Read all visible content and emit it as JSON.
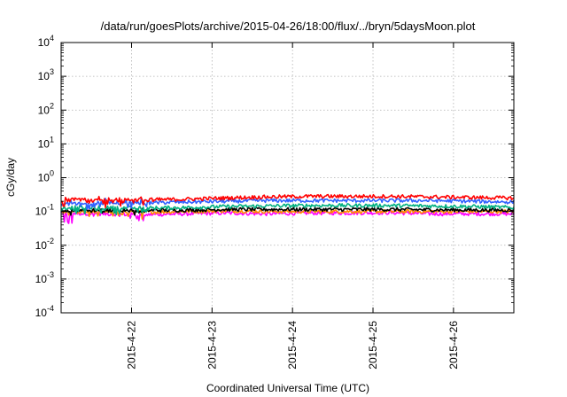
{
  "chart_data": {
    "type": "line",
    "title": "/data/run/goesPlots/archive/2015-04-26/18:00/flux/../bryn/5daysMoon.plot",
    "xlabel": "Coordinated Universal Time (UTC)",
    "ylabel": "cGy/day",
    "yscale": "log",
    "ylim": [
      0.0001,
      10000
    ],
    "xlim": [
      "2015-04-21 03:00",
      "2015-04-26 18:00"
    ],
    "grid": true,
    "x_ticks": [
      "2015-4-22",
      "2015-4-23",
      "2015-4-24",
      "2015-4-25",
      "2015-4-26"
    ],
    "y_ticks": [
      {
        "base": "10",
        "exp": "-4"
      },
      {
        "base": "10",
        "exp": "-3"
      },
      {
        "base": "10",
        "exp": "-2"
      },
      {
        "base": "10",
        "exp": "-1"
      },
      {
        "base": "10",
        "exp": "0"
      },
      {
        "base": "10",
        "exp": "1"
      },
      {
        "base": "10",
        "exp": "2"
      },
      {
        "base": "10",
        "exp": "3"
      },
      {
        "base": "10",
        "exp": "4"
      }
    ],
    "series": [
      {
        "color": "#ff00ff",
        "values": [
          0.09,
          0.085,
          0.08,
          0.085,
          0.09,
          0.085,
          0.09,
          0.09,
          0.092,
          0.085,
          0.085,
          0.085
        ]
      },
      {
        "color": "#ff8c00",
        "values": [
          0.1,
          0.097,
          0.095,
          0.1,
          0.105,
          0.1,
          0.1,
          0.1,
          0.1,
          0.1,
          0.1,
          0.1
        ]
      },
      {
        "color": "#000000",
        "values": [
          0.11,
          0.11,
          0.108,
          0.11,
          0.115,
          0.115,
          0.115,
          0.115,
          0.115,
          0.112,
          0.11,
          0.11
        ]
      },
      {
        "color": "#00b080",
        "values": [
          0.13,
          0.13,
          0.125,
          0.13,
          0.14,
          0.145,
          0.15,
          0.15,
          0.15,
          0.145,
          0.14,
          0.13
        ]
      },
      {
        "color": "#3060ff",
        "values": [
          0.17,
          0.18,
          0.18,
          0.19,
          0.2,
          0.21,
          0.21,
          0.21,
          0.21,
          0.21,
          0.2,
          0.19
        ]
      },
      {
        "color": "#ff0000",
        "values": [
          0.22,
          0.22,
          0.22,
          0.23,
          0.25,
          0.27,
          0.28,
          0.28,
          0.28,
          0.27,
          0.26,
          0.25
        ]
      }
    ]
  }
}
